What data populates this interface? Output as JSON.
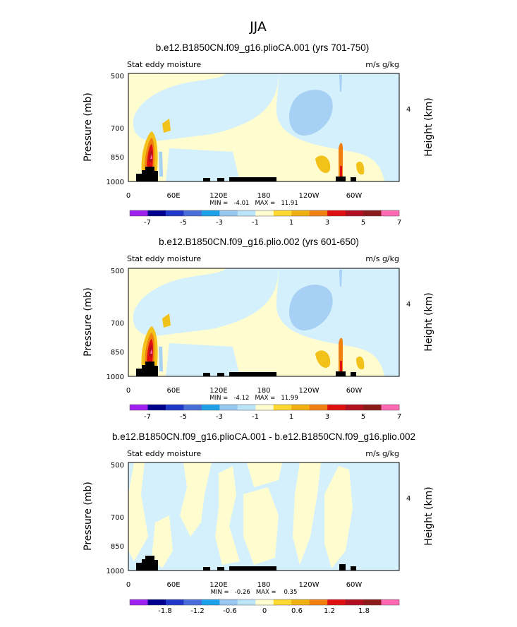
{
  "title": "JJA",
  "chart_data": [
    {
      "type": "contour",
      "title": "b.e12.B1850CN.f09_g16.plioCA.001 (yrs 701-750)",
      "left_label": "Stat eddy moisture",
      "right_label": "m/s g/kg",
      "ylabel": "Pressure (mb)",
      "y2label": "Height (km)",
      "yticks": [
        "500",
        "700",
        "850",
        "1000"
      ],
      "y2ticks": [
        "4"
      ],
      "xticks": [
        "0",
        "60E",
        "120E",
        "180",
        "120W",
        "60W"
      ],
      "min_label": "MIN =   -4.01   MAX =   11.91",
      "min": -4.01,
      "max": 11.91,
      "colorbar_labels": [
        "-7",
        "-5",
        "-3",
        "-1",
        "1",
        "3",
        "5",
        "7"
      ],
      "colorbar_colors": [
        "#a020f0",
        "#00008b",
        "#2038c8",
        "#4a6ed8",
        "#1ca0e8",
        "#98c8f0",
        "#bce4f8",
        "#fffdd0",
        "#ffd830",
        "#f0b010",
        "#f08010",
        "#e01010",
        "#b01020",
        "#8b1a1a",
        "#ff69b4"
      ]
    },
    {
      "type": "contour",
      "title": "b.e12.B1850CN.f09_g16.plio.002 (yrs 601-650)",
      "left_label": "Stat eddy moisture",
      "right_label": "m/s g/kg",
      "ylabel": "Pressure (mb)",
      "y2label": "Height (km)",
      "yticks": [
        "500",
        "700",
        "850",
        "1000"
      ],
      "y2ticks": [
        "4"
      ],
      "xticks": [
        "0",
        "60E",
        "120E",
        "180",
        "120W",
        "60W"
      ],
      "min_label": "MIN =   -4.12   MAX =   11.99",
      "min": -4.12,
      "max": 11.99,
      "colorbar_labels": [
        "-7",
        "-5",
        "-3",
        "-1",
        "1",
        "3",
        "5",
        "7"
      ],
      "colorbar_colors": [
        "#a020f0",
        "#00008b",
        "#2038c8",
        "#4a6ed8",
        "#1ca0e8",
        "#98c8f0",
        "#bce4f8",
        "#fffdd0",
        "#ffd830",
        "#f0b010",
        "#f08010",
        "#e01010",
        "#b01020",
        "#8b1a1a",
        "#ff69b4"
      ]
    },
    {
      "type": "contour",
      "title": "b.e12.B1850CN.f09_g16.plioCA.001 - b.e12.B1850CN.f09_g16.plio.002",
      "left_label": "Stat eddy moisture",
      "right_label": "m/s g/kg",
      "ylabel": "Pressure (mb)",
      "y2label": "Height (km)",
      "yticks": [
        "500",
        "700",
        "850",
        "1000"
      ],
      "y2ticks": [
        "4"
      ],
      "xticks": [
        "0",
        "60E",
        "120E",
        "180",
        "120W",
        "60W"
      ],
      "min_label": "MIN =   -0.26   MAX =    0.35",
      "min": -0.26,
      "max": 0.35,
      "colorbar_labels": [
        "-1.8",
        "-1.2",
        "-0.6",
        "0",
        "0.6",
        "1.2",
        "1.8"
      ],
      "colorbar_colors": [
        "#a020f0",
        "#00008b",
        "#2038c8",
        "#4a6ed8",
        "#1ca0e8",
        "#98c8f0",
        "#bce4f8",
        "#fffdd0",
        "#ffd830",
        "#f0b010",
        "#f08010",
        "#e01010",
        "#b01020",
        "#8b1a1a",
        "#ff69b4"
      ]
    }
  ]
}
